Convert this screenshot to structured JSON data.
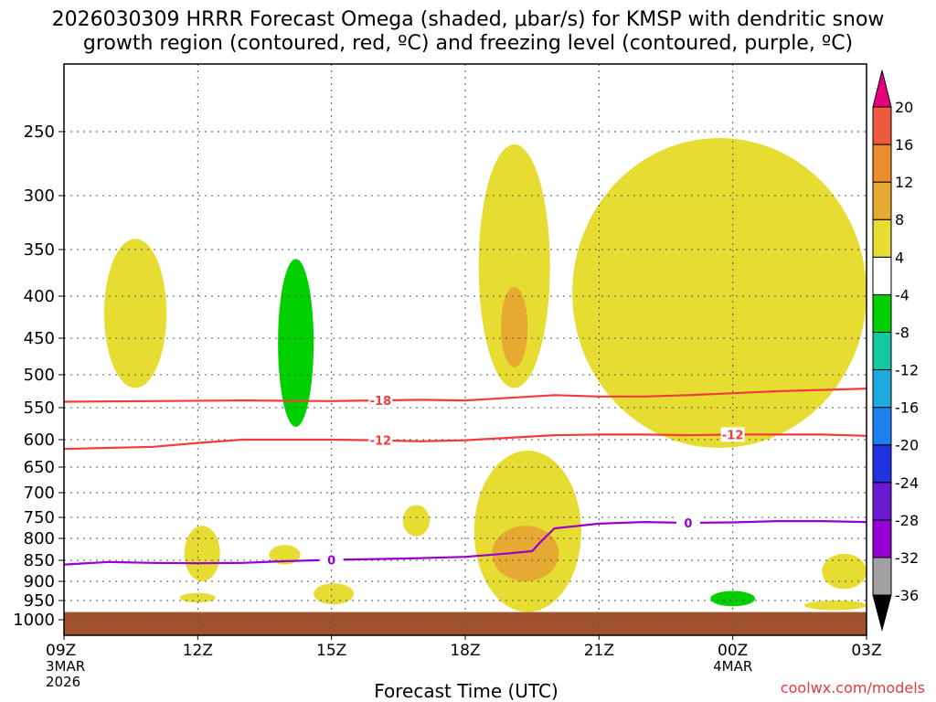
{
  "chart_data": {
    "type": "heatmap",
    "title_line1": "2026030309 HRRR Forecast Omega (shaded, μbar/s) for KMSP with dendritic snow",
    "title_line2": "growth region (contoured, red, ºC) and freezing level (contoured, purple, ºC)",
    "xlabel": "Forecast Time (UTC)",
    "ylabel": "",
    "credit": "coolwx.com/models",
    "xlim_hours": [
      9,
      27
    ],
    "x_ticks": [
      {
        "hour": 9,
        "label": "09Z",
        "sub1": "3MAR",
        "sub2": "2026"
      },
      {
        "hour": 12,
        "label": "12Z",
        "sub1": "",
        "sub2": ""
      },
      {
        "hour": 15,
        "label": "15Z",
        "sub1": "",
        "sub2": ""
      },
      {
        "hour": 18,
        "label": "18Z",
        "sub1": "",
        "sub2": ""
      },
      {
        "hour": 21,
        "label": "21Z",
        "sub1": "",
        "sub2": ""
      },
      {
        "hour": 24,
        "label": "00Z",
        "sub1": "4MAR",
        "sub2": ""
      },
      {
        "hour": 27,
        "label": "03Z",
        "sub1": "",
        "sub2": ""
      }
    ],
    "y_ticks_hpa": [
      250,
      300,
      350,
      400,
      450,
      500,
      550,
      600,
      650,
      700,
      750,
      800,
      850,
      900,
      950,
      1000
    ],
    "ylim_hpa": [
      1000,
      200
    ],
    "ground_hpa": 980,
    "ground_color": "#a0522d",
    "omega_colorbar": {
      "levels": [
        -36,
        -32,
        -28,
        -24,
        -20,
        -16,
        -12,
        -8,
        -4,
        4,
        8,
        12,
        16,
        20
      ],
      "colors": [
        "#000000",
        "#a0a0a0",
        "#9400d3",
        "#6a1bd1",
        "#2332e0",
        "#1e7ff0",
        "#1eaadc",
        "#14c8a0",
        "#00d000",
        "#ffffff",
        "#e6dc32",
        "#e6aa32",
        "#eb8c2d",
        "#f05a3c",
        "#f03c46",
        "#e6007d"
      ]
    },
    "omega_regions": [
      {
        "name": "warm-yellow",
        "value": 6,
        "color": "#e6dc32",
        "hours": [
          9.9,
          11.3
        ],
        "hpa": [
          340,
          520
        ]
      },
      {
        "name": "green-upward",
        "value": -6,
        "color": "#00d000",
        "hours": [
          13.8,
          14.6
        ],
        "hpa": [
          360,
          580
        ]
      },
      {
        "name": "yellow-1",
        "value": 6,
        "color": "#e6dc32",
        "hours": [
          18.3,
          19.9
        ],
        "hpa": [
          260,
          520
        ]
      },
      {
        "name": "orange-1",
        "value": 10,
        "color": "#e6aa32",
        "hours": [
          18.8,
          19.4
        ],
        "hpa": [
          390,
          490
        ]
      },
      {
        "name": "yellow-2",
        "value": 6,
        "color": "#e6dc32",
        "hours": [
          20.4,
          27.0
        ],
        "hpa": [
          255,
          615
        ]
      },
      {
        "name": "yellow-3",
        "value": 6,
        "color": "#e6dc32",
        "hours": [
          18.2,
          20.6
        ],
        "hpa": [
          620,
          980
        ]
      },
      {
        "name": "orange-2",
        "value": 10,
        "color": "#e6aa32",
        "hours": [
          18.6,
          20.1
        ],
        "hpa": [
          770,
          900
        ]
      },
      {
        "name": "yellow-4",
        "value": 6,
        "color": "#e6dc32",
        "hours": [
          11.7,
          12.5
        ],
        "hpa": [
          770,
          900
        ]
      },
      {
        "name": "yellow-5",
        "value": 6,
        "color": "#e6dc32",
        "hours": [
          13.6,
          14.3
        ],
        "hpa": [
          815,
          860
        ]
      },
      {
        "name": "yellow-6",
        "value": 6,
        "color": "#e6dc32",
        "hours": [
          14.6,
          15.5
        ],
        "hpa": [
          905,
          960
        ]
      },
      {
        "name": "yellow-7",
        "value": 6,
        "color": "#e6dc32",
        "hours": [
          16.6,
          17.2
        ],
        "hpa": [
          725,
          795
        ]
      },
      {
        "name": "green-low",
        "value": -6,
        "color": "#00d000",
        "hours": [
          23.5,
          24.5
        ],
        "hpa": [
          925,
          965
        ]
      },
      {
        "name": "yellow-8",
        "value": 6,
        "color": "#e6dc32",
        "hours": [
          26.0,
          27.0
        ],
        "hpa": [
          835,
          920
        ]
      },
      {
        "name": "yellow-9",
        "value": 6,
        "color": "#e6dc32",
        "hours": [
          25.6,
          27.0
        ],
        "hpa": [
          950,
          975
        ]
      },
      {
        "name": "yellow-10",
        "value": 6,
        "color": "#e6dc32",
        "hours": [
          11.6,
          12.4
        ],
        "hpa": [
          930,
          955
        ]
      }
    ],
    "series": [
      {
        "name": "-18",
        "color": "#f03c3c",
        "label_at_hour": 16.1,
        "points": [
          [
            9,
            541
          ],
          [
            11,
            540
          ],
          [
            13,
            539
          ],
          [
            15,
            540
          ],
          [
            16,
            539
          ],
          [
            17,
            538
          ],
          [
            18,
            539
          ],
          [
            19,
            535
          ],
          [
            20,
            531
          ],
          [
            21,
            533
          ],
          [
            22,
            533
          ],
          [
            23,
            531
          ],
          [
            24,
            528
          ],
          [
            25,
            525
          ],
          [
            26,
            523
          ],
          [
            27,
            521
          ]
        ]
      },
      {
        "name": "-12",
        "color": "#f03c3c",
        "label_at_hour": 16.1,
        "label2_at_hour": 24.0,
        "points": [
          [
            9,
            617
          ],
          [
            11,
            613
          ],
          [
            12,
            606
          ],
          [
            13,
            600
          ],
          [
            15,
            600
          ],
          [
            16,
            601
          ],
          [
            17,
            603
          ],
          [
            18,
            601
          ],
          [
            19,
            597
          ],
          [
            20,
            593
          ],
          [
            21,
            592
          ],
          [
            22,
            592
          ],
          [
            23,
            593
          ],
          [
            24,
            592
          ],
          [
            25,
            592
          ],
          [
            26,
            592
          ],
          [
            27,
            594
          ]
        ]
      },
      {
        "name": "0",
        "color": "#9400d3",
        "label_at_hour": 15.0,
        "label2_at_hour": 23.0,
        "points": [
          [
            9,
            860
          ],
          [
            10,
            854
          ],
          [
            11,
            856
          ],
          [
            12,
            857
          ],
          [
            13,
            856
          ],
          [
            14,
            852
          ],
          [
            15,
            849
          ],
          [
            16,
            847
          ],
          [
            17,
            845
          ],
          [
            18,
            842
          ],
          [
            19,
            834
          ],
          [
            19.5,
            829
          ],
          [
            19.7,
            807
          ],
          [
            20,
            776
          ],
          [
            21,
            765
          ],
          [
            22,
            761
          ],
          [
            23,
            763
          ],
          [
            24,
            762
          ],
          [
            25,
            759
          ],
          [
            26,
            759
          ],
          [
            27,
            761
          ]
        ]
      }
    ]
  }
}
